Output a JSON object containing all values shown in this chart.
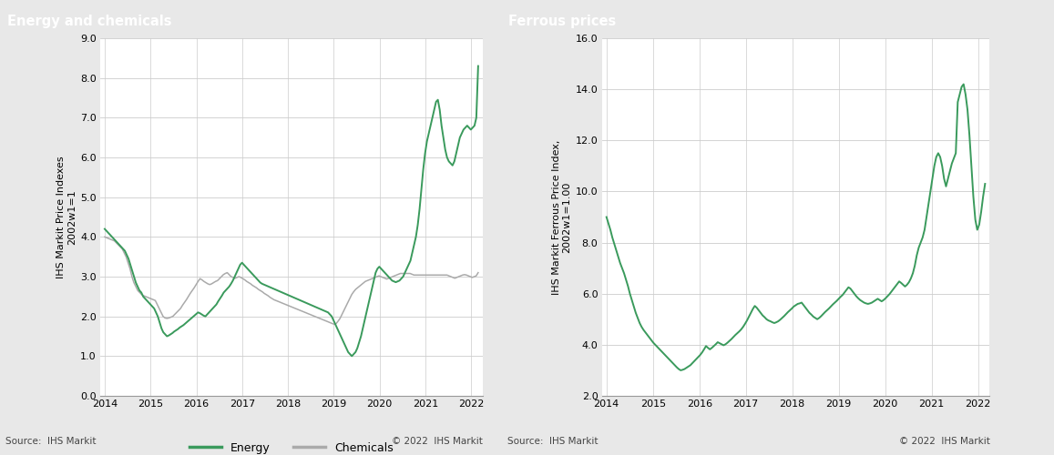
{
  "title1": "Energy and chemicals",
  "title2": "Ferrous prices",
  "ylabel1": "IHS Markit Price Indexes\n2002w1=1",
  "ylabel2": "IHS Markit Ferrous Price Index,\n2002w1=1.00",
  "source_left": "Source:  IHS Markit",
  "source_right": "Source:  IHS Markit",
  "copyright": "© 2022  IHS Markit",
  "header_color": "#888888",
  "energy_color": "#3a9a5c",
  "chemicals_color": "#aaaaaa",
  "ferrous_color": "#3a9a5c",
  "background_color": "#e8e8e8",
  "plot_bg": "#ffffff",
  "ylim1": [
    0.0,
    9.0
  ],
  "yticks1": [
    0.0,
    1.0,
    2.0,
    3.0,
    4.0,
    5.0,
    6.0,
    7.0,
    8.0,
    9.0
  ],
  "ylim2": [
    2.0,
    16.0
  ],
  "yticks2": [
    2.0,
    4.0,
    6.0,
    8.0,
    10.0,
    12.0,
    14.0,
    16.0
  ],
  "xticks": [
    2014,
    2015,
    2016,
    2017,
    2018,
    2019,
    2020,
    2021,
    2022
  ],
  "energy": [
    4.2,
    4.15,
    4.1,
    4.05,
    4.0,
    3.95,
    3.9,
    3.85,
    3.8,
    3.75,
    3.7,
    3.65,
    3.55,
    3.45,
    3.3,
    3.15,
    3.0,
    2.85,
    2.75,
    2.65,
    2.6,
    2.5,
    2.45,
    2.4,
    2.35,
    2.3,
    2.25,
    2.2,
    2.1,
    2.0,
    1.85,
    1.7,
    1.6,
    1.55,
    1.5,
    1.52,
    1.55,
    1.58,
    1.62,
    1.65,
    1.68,
    1.72,
    1.75,
    1.78,
    1.82,
    1.86,
    1.9,
    1.94,
    1.98,
    2.02,
    2.06,
    2.1,
    2.08,
    2.05,
    2.02,
    2.0,
    2.05,
    2.1,
    2.15,
    2.2,
    2.25,
    2.3,
    2.38,
    2.45,
    2.52,
    2.6,
    2.65,
    2.7,
    2.75,
    2.82,
    2.9,
    3.0,
    3.1,
    3.2,
    3.3,
    3.35,
    3.3,
    3.25,
    3.2,
    3.15,
    3.1,
    3.05,
    3.0,
    2.95,
    2.9,
    2.85,
    2.82,
    2.8,
    2.78,
    2.76,
    2.74,
    2.72,
    2.7,
    2.68,
    2.66,
    2.64,
    2.62,
    2.6,
    2.58,
    2.56,
    2.54,
    2.52,
    2.5,
    2.48,
    2.46,
    2.44,
    2.42,
    2.4,
    2.38,
    2.36,
    2.34,
    2.32,
    2.3,
    2.28,
    2.26,
    2.24,
    2.22,
    2.2,
    2.18,
    2.16,
    2.14,
    2.12,
    2.1,
    2.05,
    2.0,
    1.9,
    1.8,
    1.7,
    1.6,
    1.5,
    1.4,
    1.3,
    1.2,
    1.1,
    1.05,
    1.0,
    1.05,
    1.1,
    1.2,
    1.35,
    1.5,
    1.7,
    1.9,
    2.1,
    2.3,
    2.5,
    2.7,
    2.9,
    3.1,
    3.2,
    3.25,
    3.2,
    3.15,
    3.1,
    3.05,
    3.0,
    2.95,
    2.9,
    2.88,
    2.86,
    2.88,
    2.9,
    2.95,
    3.0,
    3.1,
    3.2,
    3.3,
    3.4,
    3.6,
    3.8,
    4.0,
    4.3,
    4.7,
    5.2,
    5.7,
    6.1,
    6.4,
    6.6,
    6.8,
    7.0,
    7.2,
    7.4,
    7.45,
    7.2,
    6.8,
    6.5,
    6.2,
    6.0,
    5.9,
    5.85,
    5.8,
    5.9,
    6.1,
    6.3,
    6.5,
    6.6,
    6.7,
    6.75,
    6.8,
    6.75,
    6.7,
    6.75,
    6.8,
    7.0,
    8.3
  ],
  "chemicals": [
    4.0,
    3.98,
    3.96,
    3.94,
    3.92,
    3.9,
    3.85,
    3.8,
    3.75,
    3.7,
    3.6,
    3.5,
    3.35,
    3.2,
    3.0,
    2.85,
    2.75,
    2.65,
    2.6,
    2.55,
    2.52,
    2.5,
    2.48,
    2.46,
    2.44,
    2.42,
    2.4,
    2.3,
    2.2,
    2.1,
    2.0,
    1.96,
    1.95,
    1.96,
    1.98,
    2.0,
    2.05,
    2.1,
    2.15,
    2.2,
    2.28,
    2.35,
    2.42,
    2.5,
    2.58,
    2.65,
    2.72,
    2.8,
    2.88,
    2.95,
    2.92,
    2.88,
    2.85,
    2.82,
    2.8,
    2.82,
    2.85,
    2.88,
    2.9,
    2.95,
    3.0,
    3.05,
    3.08,
    3.1,
    3.05,
    3.0,
    2.98,
    2.96,
    2.98,
    3.0,
    2.98,
    2.95,
    2.92,
    2.88,
    2.85,
    2.82,
    2.78,
    2.75,
    2.72,
    2.68,
    2.65,
    2.62,
    2.58,
    2.55,
    2.52,
    2.48,
    2.45,
    2.42,
    2.4,
    2.38,
    2.36,
    2.34,
    2.32,
    2.3,
    2.28,
    2.26,
    2.24,
    2.22,
    2.2,
    2.18,
    2.16,
    2.14,
    2.12,
    2.1,
    2.08,
    2.06,
    2.04,
    2.02,
    2.0,
    1.98,
    1.96,
    1.94,
    1.92,
    1.9,
    1.88,
    1.86,
    1.84,
    1.82,
    1.8,
    1.82,
    1.88,
    1.95,
    2.05,
    2.15,
    2.25,
    2.35,
    2.45,
    2.55,
    2.62,
    2.68,
    2.72,
    2.76,
    2.8,
    2.84,
    2.88,
    2.9,
    2.92,
    2.94,
    2.96,
    2.98,
    3.0,
    3.02,
    3.0,
    2.98,
    2.96,
    2.94,
    2.96,
    2.98,
    3.0,
    3.02,
    3.04,
    3.06,
    3.08,
    3.08,
    3.08,
    3.08,
    3.08,
    3.08,
    3.06,
    3.04,
    3.04,
    3.04,
    3.04,
    3.04,
    3.04,
    3.04,
    3.04,
    3.04,
    3.04,
    3.04,
    3.04,
    3.04,
    3.04,
    3.04,
    3.04,
    3.04,
    3.04,
    3.02,
    3.0,
    2.98,
    2.96,
    2.98,
    3.0,
    3.02,
    3.04,
    3.05,
    3.04,
    3.02,
    3.0,
    2.98,
    3.0,
    3.02,
    3.1
  ],
  "ferrous": [
    9.0,
    8.75,
    8.5,
    8.2,
    7.95,
    7.7,
    7.45,
    7.2,
    7.0,
    6.8,
    6.55,
    6.3,
    6.0,
    5.75,
    5.5,
    5.25,
    5.05,
    4.85,
    4.7,
    4.58,
    4.48,
    4.38,
    4.28,
    4.18,
    4.08,
    4.0,
    3.92,
    3.84,
    3.76,
    3.68,
    3.6,
    3.52,
    3.44,
    3.36,
    3.28,
    3.2,
    3.12,
    3.05,
    3.0,
    3.02,
    3.05,
    3.1,
    3.15,
    3.2,
    3.28,
    3.36,
    3.44,
    3.52,
    3.6,
    3.7,
    3.82,
    3.95,
    3.88,
    3.82,
    3.88,
    3.95,
    4.02,
    4.1,
    4.06,
    4.02,
    3.98,
    4.02,
    4.08,
    4.15,
    4.22,
    4.3,
    4.38,
    4.45,
    4.52,
    4.6,
    4.7,
    4.82,
    4.95,
    5.1,
    5.25,
    5.4,
    5.52,
    5.45,
    5.35,
    5.25,
    5.15,
    5.08,
    5.0,
    4.95,
    4.92,
    4.88,
    4.85,
    4.88,
    4.92,
    4.98,
    5.05,
    5.12,
    5.2,
    5.28,
    5.35,
    5.42,
    5.5,
    5.55,
    5.6,
    5.62,
    5.65,
    5.55,
    5.45,
    5.35,
    5.25,
    5.18,
    5.1,
    5.05,
    5.0,
    5.05,
    5.12,
    5.2,
    5.28,
    5.35,
    5.42,
    5.5,
    5.58,
    5.65,
    5.72,
    5.8,
    5.88,
    5.95,
    6.05,
    6.15,
    6.25,
    6.2,
    6.1,
    6.0,
    5.9,
    5.82,
    5.75,
    5.7,
    5.65,
    5.62,
    5.6,
    5.62,
    5.65,
    5.7,
    5.75,
    5.8,
    5.75,
    5.7,
    5.75,
    5.82,
    5.9,
    5.98,
    6.08,
    6.18,
    6.28,
    6.38,
    6.48,
    6.42,
    6.35,
    6.28,
    6.35,
    6.45,
    6.6,
    6.8,
    7.1,
    7.5,
    7.8,
    8.0,
    8.2,
    8.5,
    9.0,
    9.5,
    10.0,
    10.5,
    11.0,
    11.35,
    11.5,
    11.35,
    11.0,
    10.5,
    10.2,
    10.5,
    10.8,
    11.1,
    11.3,
    11.5,
    13.5,
    13.8,
    14.1,
    14.2,
    13.8,
    13.2,
    12.2,
    11.0,
    9.8,
    8.9,
    8.5,
    8.7,
    9.2,
    9.8,
    10.3
  ]
}
